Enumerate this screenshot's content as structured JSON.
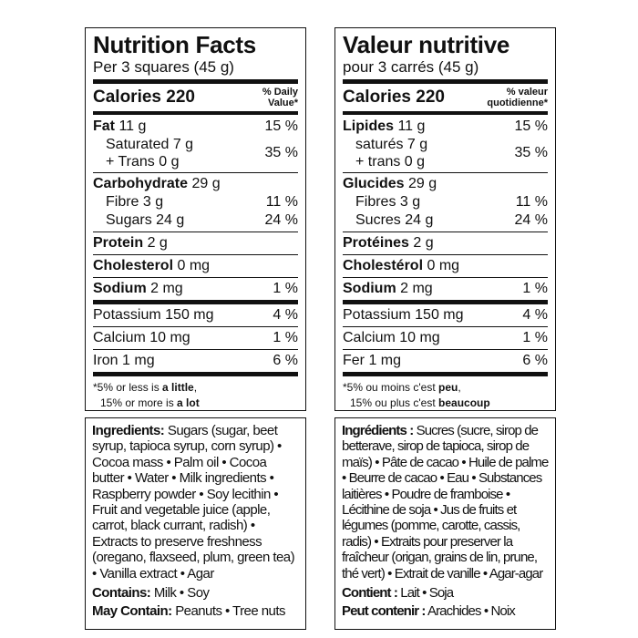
{
  "panels": [
    {
      "nutrition": {
        "title": "Nutrition Facts",
        "serving": "Per 3 squares (45 g)",
        "calories": "Calories 220",
        "dv_header": [
          "% Daily",
          "Value*"
        ],
        "rows": [
          {
            "name": "Fat",
            "amount": "11 g",
            "dv": "15 %"
          },
          {
            "lines": [
              "Saturated 7 g",
              "+ Trans 0 g"
            ],
            "dv": "35 %"
          },
          {
            "name": "Carbohydrate",
            "amount": "29 g"
          },
          {
            "label": "Fibre 3 g",
            "dv": "11 %"
          },
          {
            "label": "Sugars 24 g",
            "dv": "24 %"
          },
          {
            "name": "Protein",
            "amount": "2 g"
          },
          {
            "name": "Cholesterol",
            "amount": "0 mg"
          },
          {
            "name": "Sodium",
            "amount": "2 mg",
            "dv": "1 %"
          },
          {
            "label": "Potassium 150 mg",
            "dv": "4 %"
          },
          {
            "label": "Calcium 10 mg",
            "dv": "1 %"
          },
          {
            "label": "Iron 1 mg",
            "dv": "6 %"
          }
        ],
        "footnote": [
          {
            "text": "*5% or less is",
            "bold": "a little",
            "end": ","
          },
          {
            "text": "15% or more is",
            "bold": "a lot"
          }
        ]
      },
      "ingredients": {
        "label": "Ingredients:",
        "text": "Sugars (sugar, beet syrup, tapioca syrup, corn syrup) • Cocoa mass • Palm oil • Cocoa butter • Water • Milk ingredients • Raspberry powder • Soy lecithin • Fruit and vegetable juice (apple, carrot, black currant, radish) • Extracts to preserve freshness (oregano, flaxseed, plum, green tea) • Vanilla extract • Agar",
        "contains": {
          "label": "Contains:",
          "text": "Milk • Soy"
        },
        "may_contain": {
          "label": "May Contain:",
          "text": "Peanuts • Tree nuts"
        }
      }
    },
    {
      "nutrition": {
        "title": "Valeur nutritive",
        "serving": "pour 3 carrés (45 g)",
        "calories": "Calories 220",
        "dv_header": [
          "% valeur",
          "quotidienne*"
        ],
        "rows": [
          {
            "name": "Lipides",
            "amount": "11 g",
            "dv": "15 %"
          },
          {
            "lines": [
              "saturés 7 g",
              "+ trans 0 g"
            ],
            "dv": "35 %"
          },
          {
            "name": "Glucides",
            "amount": "29 g"
          },
          {
            "label": "Fibres 3 g",
            "dv": "11 %"
          },
          {
            "label": "Sucres 24 g",
            "dv": "24 %"
          },
          {
            "name": "Protéines",
            "amount": "2 g"
          },
          {
            "name": "Cholestérol",
            "amount": "0 mg"
          },
          {
            "name": "Sodium",
            "amount": "2 mg",
            "dv": "1 %"
          },
          {
            "label": "Potassium 150 mg",
            "dv": "4 %"
          },
          {
            "label": "Calcium 10 mg",
            "dv": "1 %"
          },
          {
            "label": "Fer 1 mg",
            "dv": "6 %"
          }
        ],
        "footnote": [
          {
            "text": "*5% ou moins c'est",
            "bold": "peu",
            "end": ","
          },
          {
            "text": "15% ou plus c'est",
            "bold": "beaucoup"
          }
        ]
      },
      "ingredients": {
        "label": "Ingrédients :",
        "text": "Sucres (sucre, sirop de betterave, sirop de tapioca, sirop de maïs) • Pâte de cacao • Huile de palme • Beurre de cacao • Eau • Substances laitières • Poudre de framboise • Lécithine de soja • Jus de fruits et légumes (pomme, carotte, cassis, radis) • Extraits pour preserver la fraîcheur (origan, grains de lin, prune, thé vert) • Extrait de vanille • Agar-agar",
        "contains": {
          "label": "Contient :",
          "text": "Lait • Soja"
        },
        "may_contain": {
          "label": "Peut contenir :",
          "text": "Arachides • Noix"
        }
      }
    }
  ]
}
